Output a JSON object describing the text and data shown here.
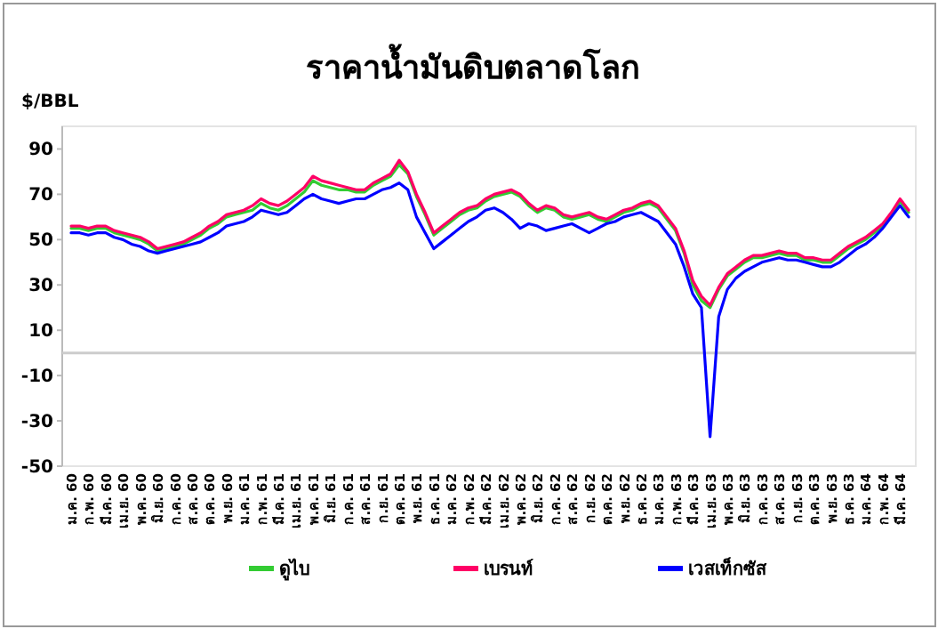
{
  "chart_data": {
    "type": "line",
    "title": "ราคาน้ำมันดิบตลาดโลก",
    "ylabel": "$/BBL",
    "categories": [
      "ม.ค. 60",
      null,
      "ก.พ. 60",
      null,
      "มี.ค. 60",
      null,
      "เม.ย. 60",
      null,
      "พ.ค. 60",
      null,
      "มิ.ย. 60",
      null,
      "ก.ค. 60",
      null,
      "ส.ค. 60",
      null,
      "ต.ค. 60",
      null,
      "พ.ย. 60",
      null,
      "ม.ค. 61",
      null,
      "ก.พ. 61",
      null,
      "มี.ค. 61",
      null,
      "เม.ย. 61",
      null,
      "พ.ค. 61",
      null,
      "มิ.ย. 61",
      null,
      "ก.ค. 61",
      null,
      "ส.ค. 61",
      null,
      "ก.ย. 61",
      null,
      "ต.ค. 61",
      null,
      "พ.ย. 61",
      null,
      "ธ.ค. 61",
      null,
      "ม.ค. 62",
      null,
      "ก.พ. 62",
      null,
      "มี.ค. 62",
      null,
      "เม.ย. 62",
      null,
      "พ.ค. 62",
      null,
      "มิ.ย. 62",
      null,
      "ก.ค. 62",
      null,
      "ส.ค. 62",
      null,
      "ก.ย. 62",
      null,
      "ต.ค. 62",
      null,
      "พ.ย. 62",
      null,
      "ธ.ค. 62",
      null,
      "ม.ค. 63",
      null,
      "ก.พ. 63",
      null,
      "มี.ค. 63",
      null,
      "เม.ย. 63",
      null,
      "พ.ค. 63",
      null,
      "มิ.ย. 63",
      null,
      "ก.ค. 63",
      null,
      "ส.ค. 63",
      null,
      "ก.ย. 63",
      null,
      "ต.ค. 63",
      null,
      "พ.ย. 63",
      null,
      "ธ.ค. 63",
      null,
      "ม.ค. 64",
      null,
      "ก.พ. 64",
      null,
      "มี.ค. 64",
      null
    ],
    "series": [
      {
        "name": "ดูไบ",
        "color": "#33cc33",
        "values": [
          55,
          55,
          54,
          55,
          55,
          53,
          52,
          51,
          50,
          48,
          45,
          46,
          47,
          48,
          50,
          52,
          55,
          57,
          60,
          61,
          62,
          63,
          66,
          64,
          63,
          65,
          68,
          71,
          76,
          74,
          73,
          72,
          72,
          71,
          71,
          74,
          76,
          78,
          83,
          79,
          69,
          61,
          52,
          55,
          58,
          61,
          63,
          64,
          67,
          69,
          70,
          71,
          69,
          65,
          62,
          64,
          63,
          60,
          59,
          60,
          61,
          59,
          58,
          60,
          62,
          63,
          65,
          66,
          64,
          59,
          54,
          44,
          30,
          23,
          20,
          28,
          34,
          37,
          40,
          42,
          42,
          43,
          44,
          43,
          43,
          41,
          41,
          40,
          40,
          43,
          46,
          48,
          50,
          53,
          56,
          61,
          67,
          62
        ]
      },
      {
        "name": "เบรนท์",
        "color": "#ff0066",
        "values": [
          56,
          56,
          55,
          56,
          56,
          54,
          53,
          52,
          51,
          49,
          46,
          47,
          48,
          49,
          51,
          53,
          56,
          58,
          61,
          62,
          63,
          65,
          68,
          66,
          65,
          67,
          70,
          73,
          78,
          76,
          75,
          74,
          73,
          72,
          72,
          75,
          77,
          79,
          85,
          80,
          70,
          62,
          53,
          56,
          59,
          62,
          64,
          65,
          68,
          70,
          71,
          72,
          70,
          66,
          63,
          65,
          64,
          61,
          60,
          61,
          62,
          60,
          59,
          61,
          63,
          64,
          66,
          67,
          65,
          60,
          55,
          45,
          32,
          25,
          21,
          29,
          35,
          38,
          41,
          43,
          43,
          44,
          45,
          44,
          44,
          42,
          42,
          41,
          41,
          44,
          47,
          49,
          51,
          54,
          57,
          62,
          68,
          63
        ]
      },
      {
        "name": "เวสเท็กซัส",
        "color": "#0000ff",
        "values": [
          53,
          53,
          52,
          53,
          53,
          51,
          50,
          48,
          47,
          45,
          44,
          45,
          46,
          47,
          48,
          49,
          51,
          53,
          56,
          57,
          58,
          60,
          63,
          62,
          61,
          62,
          65,
          68,
          70,
          68,
          67,
          66,
          67,
          68,
          68,
          70,
          72,
          73,
          75,
          72,
          60,
          53,
          46,
          49,
          52,
          55,
          58,
          60,
          63,
          64,
          62,
          59,
          55,
          57,
          56,
          54,
          55,
          56,
          57,
          55,
          53,
          55,
          57,
          58,
          60,
          61,
          62,
          60,
          58,
          53,
          48,
          38,
          26,
          20,
          -37,
          16,
          28,
          33,
          36,
          38,
          40,
          41,
          42,
          41,
          41,
          40,
          39,
          38,
          38,
          40,
          43,
          46,
          48,
          51,
          55,
          60,
          65,
          60
        ]
      }
    ],
    "ylim": [
      -50,
      100
    ],
    "yticks": [
      -50,
      -30,
      -10,
      10,
      30,
      50,
      70,
      90
    ],
    "grid": false,
    "legend": "bottom",
    "marker": "none",
    "line_style": "solid"
  }
}
